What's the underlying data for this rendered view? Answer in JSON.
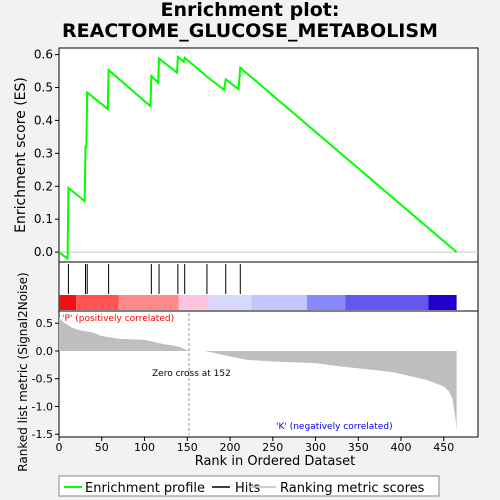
{
  "title_line1": "Enrichment plot:",
  "title_line2": "REACTOME_GLUCOSE_METABOLISM",
  "colors": {
    "es_line": "#00ff00",
    "hits": "#000000",
    "metric_fill": "#bebebe",
    "positive_label": "#ff0000",
    "negative_label": "#0000ff"
  },
  "chart_data": [
    {
      "type": "line",
      "name": "enrichment-profile",
      "ylabel": "Enrichment score (ES)",
      "xlim": [
        0,
        490
      ],
      "ylim": [
        -0.03,
        0.62
      ],
      "yticks": [
        0.0,
        0.1,
        0.2,
        0.3,
        0.4,
        0.5,
        0.6
      ],
      "ytick_labels": [
        "0.0",
        "0.1",
        "0.2",
        "0.3",
        "0.4",
        "0.5",
        "0.6"
      ],
      "grid": false,
      "points": [
        [
          0,
          0.0
        ],
        [
          10,
          -0.02
        ],
        [
          11,
          0.195
        ],
        [
          30,
          0.155
        ],
        [
          31,
          0.32
        ],
        [
          32,
          0.32
        ],
        [
          33,
          0.485
        ],
        [
          57,
          0.435
        ],
        [
          58,
          0.553
        ],
        [
          107,
          0.443
        ],
        [
          108,
          0.535
        ],
        [
          116,
          0.515
        ],
        [
          117,
          0.588
        ],
        [
          138,
          0.545
        ],
        [
          139,
          0.593
        ],
        [
          146,
          0.578
        ],
        [
          147,
          0.59
        ],
        [
          170,
          0.54
        ],
        [
          172,
          0.535
        ],
        [
          193,
          0.493
        ],
        [
          195,
          0.525
        ],
        [
          210,
          0.495
        ],
        [
          212,
          0.56
        ],
        [
          465,
          0.0
        ]
      ]
    },
    {
      "type": "hits",
      "name": "hits",
      "positions": [
        11,
        31,
        33,
        58,
        108,
        117,
        139,
        147,
        173,
        195,
        212
      ]
    },
    {
      "type": "heatmap",
      "name": "rank-color-bar",
      "segments": [
        {
          "from": 0,
          "to": 20,
          "color": "#ee1111"
        },
        {
          "from": 20,
          "to": 70,
          "color": "#ff5555"
        },
        {
          "from": 70,
          "to": 140,
          "color": "#ff8888"
        },
        {
          "from": 140,
          "to": 175,
          "color": "#ffc4dd"
        },
        {
          "from": 175,
          "to": 225,
          "color": "#d8d8ff"
        },
        {
          "from": 225,
          "to": 290,
          "color": "#c4c4ff"
        },
        {
          "from": 290,
          "to": 335,
          "color": "#8888ff"
        },
        {
          "from": 335,
          "to": 432,
          "color": "#6655ee"
        },
        {
          "from": 432,
          "to": 465,
          "color": "#2200cc"
        }
      ]
    },
    {
      "type": "area",
      "name": "ranked-list-metric",
      "ylabel": "Ranked list metric (Signal2Noise)",
      "xlabel": "Rank in Ordered Dataset",
      "xlim": [
        0,
        490
      ],
      "ylim": [
        -1.55,
        0.72
      ],
      "xticks": [
        0,
        50,
        100,
        150,
        200,
        250,
        300,
        350,
        400,
        450
      ],
      "xtick_labels": [
        "0",
        "50",
        "100",
        "150",
        "200",
        "250",
        "300",
        "350",
        "400",
        "450"
      ],
      "yticks": [
        0.5,
        0.0,
        -0.5,
        -1.0,
        -1.5
      ],
      "ytick_labels": [
        "0.5",
        "0.0",
        "-0.5",
        "-1.0",
        "-1.5"
      ],
      "points": [
        [
          0,
          0.6
        ],
        [
          5,
          0.52
        ],
        [
          15,
          0.42
        ],
        [
          25,
          0.37
        ],
        [
          40,
          0.33
        ],
        [
          50,
          0.27
        ],
        [
          70,
          0.22
        ],
        [
          100,
          0.2
        ],
        [
          120,
          0.13
        ],
        [
          140,
          0.08
        ],
        [
          152,
          0.0
        ],
        [
          170,
          0.0
        ],
        [
          180,
          -0.03
        ],
        [
          200,
          -0.1
        ],
        [
          220,
          -0.16
        ],
        [
          250,
          -0.19
        ],
        [
          300,
          -0.22
        ],
        [
          330,
          -0.28
        ],
        [
          360,
          -0.33
        ],
        [
          390,
          -0.38
        ],
        [
          410,
          -0.45
        ],
        [
          430,
          -0.52
        ],
        [
          450,
          -0.64
        ],
        [
          456,
          -0.73
        ],
        [
          460,
          -0.85
        ],
        [
          462,
          -1.05
        ],
        [
          464,
          -1.25
        ],
        [
          465,
          -1.45
        ]
      ],
      "zero_cross": 152,
      "annotations": {
        "positive": "'P' (positively correlated)",
        "negative": "'K' (negatively correlated)",
        "zero_cross": "Zero cross at 152"
      }
    }
  ],
  "legend": {
    "items": [
      {
        "label": "Enrichment profile",
        "color": "#00ff00"
      },
      {
        "label": "Hits",
        "color": "#000000"
      },
      {
        "label": "Ranking metric scores",
        "color": "#bebebe"
      }
    ]
  }
}
